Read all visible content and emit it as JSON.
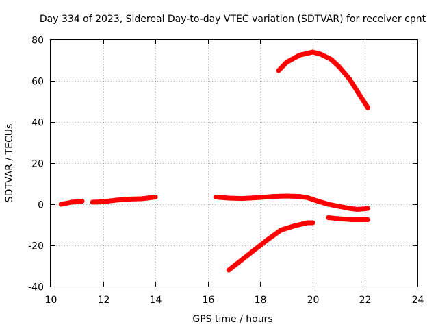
{
  "chart_data": {
    "type": "line",
    "title": "Day 334 of 2023, Sidereal Day-to-day VTEC variation (SDTVAR) for receiver cpnt",
    "xlabel": "GPS time / hours",
    "ylabel": "SDTVAR / TECUs",
    "xlim": [
      10,
      24
    ],
    "ylim": [
      -40,
      80
    ],
    "xticks": [
      "10",
      "12",
      "14",
      "16",
      "18",
      "20",
      "22",
      "24"
    ],
    "yticks": [
      "-40",
      "-20",
      "0",
      "20",
      "40",
      "60",
      "80"
    ],
    "grid": true,
    "colors": {
      "series": "#ff0000",
      "grid": "#a0a0a0",
      "axis": "#000000"
    },
    "series": [
      {
        "name": "segment-1",
        "x": [
          10.4,
          10.8,
          11.2
        ],
        "y": [
          0.0,
          1.0,
          1.5
        ]
      },
      {
        "name": "segment-2",
        "x": [
          11.6,
          12.0,
          12.5,
          13.0,
          13.5,
          14.0
        ],
        "y": [
          1.0,
          1.2,
          2.0,
          2.5,
          2.7,
          3.5
        ]
      },
      {
        "name": "segment-3",
        "x": [
          16.3,
          16.8,
          17.3,
          18.0,
          18.5,
          19.0,
          19.5,
          19.8,
          20.2,
          20.6,
          21.0,
          21.4,
          21.7,
          22.0,
          22.1
        ],
        "y": [
          3.5,
          3.0,
          2.8,
          3.3,
          3.8,
          4.0,
          3.8,
          3.2,
          1.5,
          0.0,
          -1.0,
          -2.0,
          -2.5,
          -2.2,
          -2.0
        ]
      },
      {
        "name": "segment-4",
        "x": [
          20.6,
          21.0,
          21.5,
          22.0,
          22.1
        ],
        "y": [
          -6.5,
          -7.0,
          -7.5,
          -7.5,
          -7.5
        ]
      },
      {
        "name": "segment-5",
        "x": [
          16.8,
          17.3,
          17.8,
          18.3,
          18.8,
          19.3,
          19.8,
          20.0
        ],
        "y": [
          -32.0,
          -27.0,
          -22.0,
          -17.0,
          -12.5,
          -10.5,
          -9.0,
          -9.0
        ]
      },
      {
        "name": "segment-6",
        "x": [
          18.7,
          19.0,
          19.5,
          20.0,
          20.3,
          20.7,
          21.0,
          21.4,
          21.8,
          22.1
        ],
        "y": [
          65.0,
          69.0,
          72.5,
          74.0,
          73.0,
          70.5,
          67.0,
          61.0,
          53.0,
          47.0
        ]
      }
    ]
  }
}
